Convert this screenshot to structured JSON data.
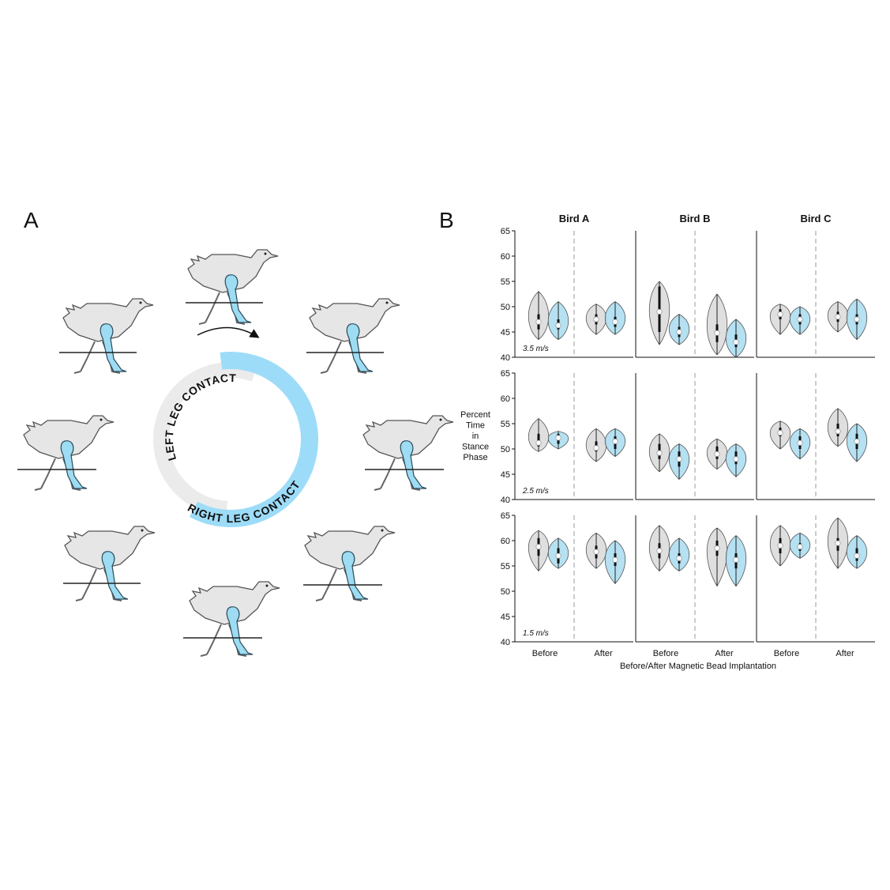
{
  "panel_a": {
    "label": "A",
    "left_text": "LEFT LEG CONTACT",
    "right_text": "RIGHT LEG CONTACT"
  },
  "chart_data": {
    "type": "violin",
    "label": "B",
    "columns": [
      "Bird A",
      "Bird B",
      "Bird C"
    ],
    "rows": [
      "3.5 m/s",
      "2.5 m/s",
      "1.5 m/s"
    ],
    "groups": [
      "Before",
      "After"
    ],
    "ylabel": [
      "Percent",
      "Time",
      "in",
      "Stance",
      "Phase"
    ],
    "xlabel": "Before/After Magnetic Bead Implantation",
    "ylim": [
      40,
      65
    ],
    "yticks": [
      40,
      45,
      50,
      55,
      60,
      65
    ],
    "colors": [
      "#d9d9d9",
      "#a8dcf0"
    ],
    "panels": [
      [
        [
          {
            "min": 43.5,
            "q1": 45.5,
            "median": 47,
            "q3": 48.5,
            "max": 53
          },
          {
            "min": 43.5,
            "q1": 45.5,
            "median": 46.3,
            "q3": 47.5,
            "max": 51
          },
          {
            "min": 44.5,
            "q1": 46.5,
            "median": 47.5,
            "q3": 48.5,
            "max": 50.5
          },
          {
            "min": 44.5,
            "q1": 46,
            "median": 47,
            "q3": 48,
            "max": 51
          }
        ],
        [
          {
            "min": 42.5,
            "q1": 45,
            "median": 49,
            "q3": 54,
            "max": 55
          },
          {
            "min": 42.5,
            "q1": 44,
            "median": 45,
            "q3": 46,
            "max": 48.5
          },
          {
            "min": 40.5,
            "q1": 43,
            "median": 44.8,
            "q3": 46.5,
            "max": 52.5
          },
          {
            "min": 40,
            "q1": 42,
            "median": 43,
            "q3": 44.5,
            "max": 47.5
          }
        ],
        [
          {
            "min": 44.5,
            "q1": 47.5,
            "median": 48.5,
            "q3": 49.5,
            "max": 50.5
          },
          {
            "min": 44.5,
            "q1": 46.5,
            "median": 47.5,
            "q3": 48.5,
            "max": 50
          },
          {
            "min": 45,
            "q1": 47,
            "median": 48,
            "q3": 49,
            "max": 51
          },
          {
            "min": 43.5,
            "q1": 46.5,
            "median": 47.5,
            "q3": 48.5,
            "max": 51.5
          }
        ]
      ],
      [
        [
          {
            "min": 49.5,
            "q1": 50.5,
            "median": 51.2,
            "q3": 53,
            "max": 56
          },
          {
            "min": 50,
            "q1": 51,
            "median": 52.2,
            "q3": 53,
            "max": 53.5
          },
          {
            "min": 47.5,
            "q1": 49.5,
            "median": 50.2,
            "q3": 51.5,
            "max": 54
          },
          {
            "min": 48.5,
            "q1": 50,
            "median": 51.5,
            "q3": 52.5,
            "max": 54
          }
        ],
        [
          {
            "min": 45.5,
            "q1": 48,
            "median": 49.2,
            "q3": 51,
            "max": 53
          },
          {
            "min": 44,
            "q1": 46.5,
            "median": 48,
            "q3": 49.5,
            "max": 51
          },
          {
            "min": 46,
            "q1": 48,
            "median": 49,
            "q3": 50.5,
            "max": 52
          },
          {
            "min": 44.5,
            "q1": 47,
            "median": 48,
            "q3": 49.5,
            "max": 51
          }
        ],
        [
          {
            "min": 50,
            "q1": 52.5,
            "median": 53.2,
            "q3": 54.2,
            "max": 55.5
          },
          {
            "min": 48,
            "q1": 50,
            "median": 51.2,
            "q3": 52.5,
            "max": 54
          },
          {
            "min": 50.5,
            "q1": 52.5,
            "median": 53.5,
            "q3": 55,
            "max": 58
          },
          {
            "min": 47.5,
            "q1": 50,
            "median": 51.5,
            "q3": 53,
            "max": 55
          }
        ]
      ],
      [
        [
          {
            "min": 54,
            "q1": 57,
            "median": 58.8,
            "q3": 60.5,
            "max": 62
          },
          {
            "min": 54.5,
            "q1": 55.5,
            "median": 57,
            "q3": 58.5,
            "max": 60.5
          },
          {
            "min": 54.5,
            "q1": 56.5,
            "median": 57.8,
            "q3": 59,
            "max": 61.5
          },
          {
            "min": 51.5,
            "q1": 55,
            "median": 56.2,
            "q3": 57.5,
            "max": 60
          }
        ],
        [
          {
            "min": 54,
            "q1": 56.5,
            "median": 58,
            "q3": 59.5,
            "max": 63
          },
          {
            "min": 54,
            "q1": 55.5,
            "median": 56.5,
            "q3": 57.5,
            "max": 60.5
          },
          {
            "min": 51,
            "q1": 57,
            "median": 58.5,
            "q3": 60,
            "max": 62.5
          },
          {
            "min": 51,
            "q1": 54.5,
            "median": 56.2,
            "q3": 57.5,
            "max": 61
          }
        ],
        [
          {
            "min": 55,
            "q1": 57.5,
            "median": 59,
            "q3": 60.5,
            "max": 63
          },
          {
            "min": 56.5,
            "q1": 58,
            "median": 58.8,
            "q3": 59.5,
            "max": 61.5
          },
          {
            "min": 54.5,
            "q1": 58,
            "median": 59.5,
            "q3": 60.5,
            "max": 64.5
          },
          {
            "min": 54.5,
            "q1": 56,
            "median": 57,
            "q3": 58.5,
            "max": 61
          }
        ]
      ]
    ]
  }
}
